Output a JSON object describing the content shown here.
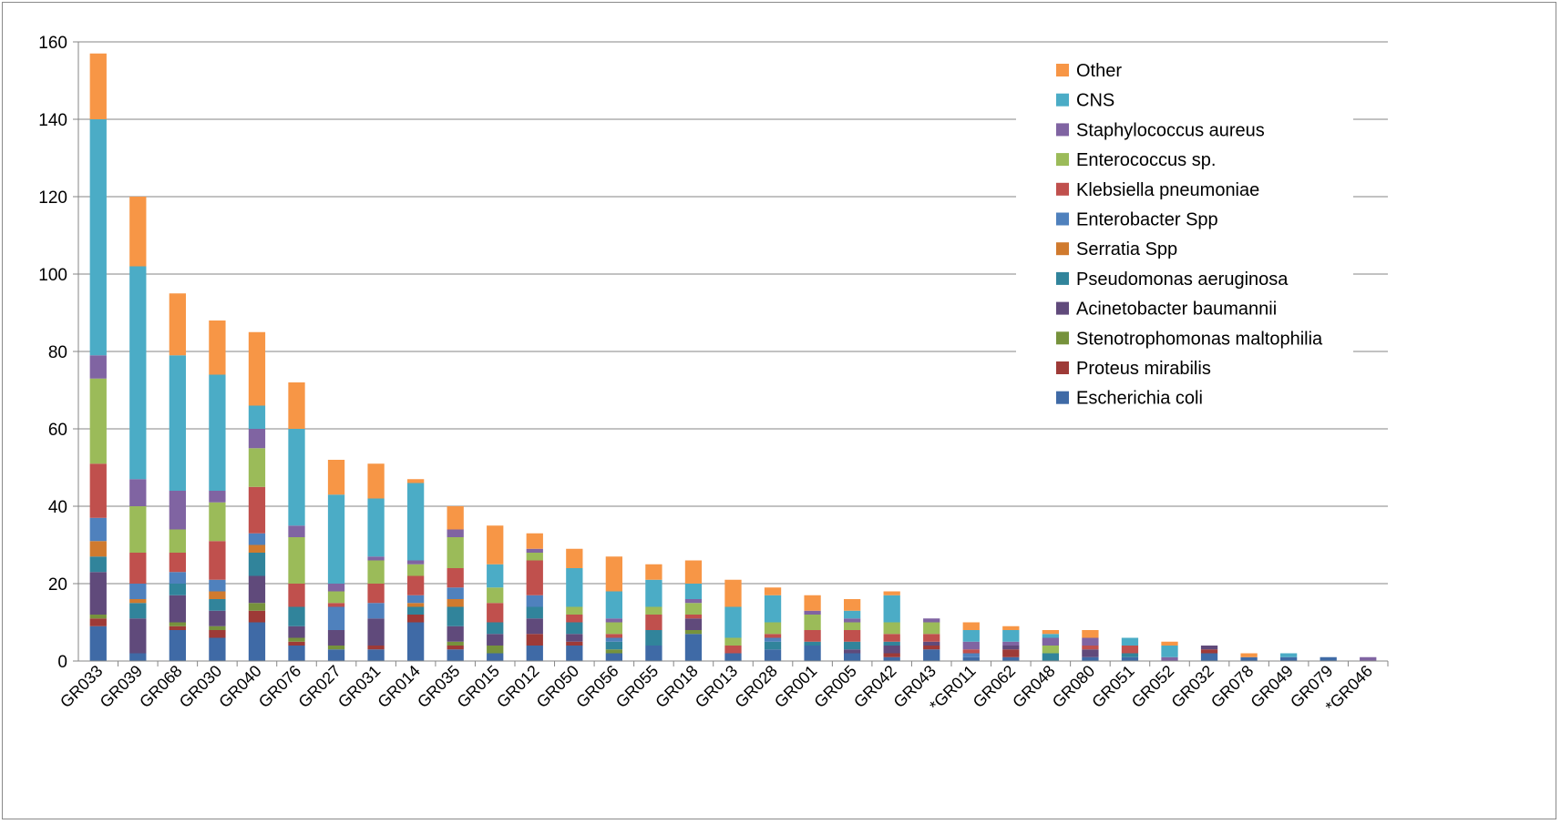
{
  "chart_data": {
    "type": "bar",
    "stacked": true,
    "title": "",
    "xlabel": "",
    "ylabel": "",
    "ylim": [
      0,
      160
    ],
    "yticks": [
      0,
      20,
      40,
      60,
      80,
      100,
      120,
      140,
      160
    ],
    "grid": true,
    "legend_position": "top-right",
    "categories": [
      "GR033",
      "GR039",
      "GR068",
      "GR030",
      "GR040",
      "GR076",
      "GR027",
      "GR031",
      "GR014",
      "GR035",
      "GR015",
      "GR012",
      "GR050",
      "GR056",
      "GR055",
      "GR018",
      "GR013",
      "GR028",
      "GR001",
      "GR005",
      "GR042",
      "GR043",
      "*GR011",
      "GR062",
      "GR048",
      "GR080",
      "GR051",
      "GR052",
      "GR032",
      "GR078",
      "GR049",
      "GR079",
      "*GR046"
    ],
    "series": [
      {
        "name": "Escherichia coli",
        "color": "#3f6aa6",
        "values": [
          9,
          2,
          8,
          6,
          10,
          4,
          3,
          3,
          10,
          3,
          2,
          4,
          4,
          2,
          4,
          7,
          2,
          3,
          4,
          2,
          1,
          3,
          1,
          1,
          0,
          1,
          1,
          0,
          2,
          1,
          1,
          1,
          0
        ]
      },
      {
        "name": "Proteus mirabilis",
        "color": "#9e3a37",
        "values": [
          2,
          0,
          1,
          2,
          3,
          1,
          0,
          1,
          2,
          1,
          0,
          3,
          1,
          0,
          0,
          0,
          0,
          0,
          0,
          0,
          1,
          1,
          0,
          2,
          0,
          0,
          0,
          0,
          1,
          0,
          0,
          0,
          0
        ]
      },
      {
        "name": "Stenotrophomonas maltophilia",
        "color": "#76923c",
        "values": [
          1,
          0,
          1,
          1,
          2,
          1,
          1,
          0,
          0,
          1,
          2,
          0,
          0,
          1,
          0,
          1,
          0,
          0,
          0,
          0,
          0,
          0,
          0,
          0,
          0,
          0,
          0,
          0,
          0,
          0,
          0,
          0,
          0
        ]
      },
      {
        "name": "Acinetobacter baumannii",
        "color": "#604a7b",
        "values": [
          11,
          9,
          7,
          4,
          7,
          3,
          4,
          7,
          0,
          4,
          3,
          4,
          2,
          0,
          0,
          3,
          0,
          0,
          0,
          1,
          2,
          1,
          0,
          1,
          0,
          2,
          0,
          0,
          1,
          0,
          0,
          0,
          0
        ]
      },
      {
        "name": "Pseudomonas aeruginosa",
        "color": "#31849b",
        "values": [
          4,
          4,
          3,
          3,
          6,
          5,
          0,
          0,
          2,
          5,
          3,
          3,
          3,
          2,
          4,
          0,
          0,
          2,
          1,
          2,
          1,
          0,
          0,
          0,
          2,
          0,
          1,
          0,
          0,
          0,
          0,
          0,
          0
        ]
      },
      {
        "name": "Serratia Spp",
        "color": "#d07a2e",
        "values": [
          4,
          1,
          0,
          2,
          2,
          0,
          0,
          0,
          1,
          2,
          0,
          0,
          0,
          0,
          0,
          0,
          0,
          0,
          0,
          0,
          0,
          0,
          0,
          0,
          0,
          0,
          0,
          0,
          0,
          0,
          0,
          0,
          0
        ]
      },
      {
        "name": "Enterobacter Spp",
        "color": "#4f81bd",
        "values": [
          6,
          4,
          3,
          3,
          3,
          0,
          6,
          4,
          2,
          3,
          0,
          3,
          0,
          1,
          0,
          0,
          0,
          1,
          0,
          0,
          0,
          0,
          1,
          0,
          0,
          0,
          0,
          0,
          0,
          0,
          0,
          0,
          0
        ]
      },
      {
        "name": "Klebsiella pneumoniae",
        "color": "#c0504d",
        "values": [
          14,
          8,
          5,
          10,
          12,
          6,
          1,
          5,
          5,
          5,
          5,
          9,
          2,
          1,
          4,
          1,
          2,
          1,
          3,
          3,
          2,
          2,
          1,
          0,
          0,
          1,
          2,
          0,
          0,
          0,
          0,
          0,
          0
        ]
      },
      {
        "name": "Enterococcus sp.",
        "color": "#9bbb59",
        "values": [
          22,
          12,
          6,
          10,
          10,
          12,
          3,
          6,
          3,
          8,
          4,
          2,
          2,
          3,
          2,
          3,
          2,
          3,
          4,
          2,
          3,
          3,
          0,
          0,
          2,
          0,
          0,
          0,
          0,
          0,
          0,
          0,
          0
        ]
      },
      {
        "name": "Staphylococcus aureus",
        "color": "#8064a2",
        "values": [
          6,
          7,
          10,
          3,
          5,
          3,
          2,
          1,
          1,
          2,
          0,
          1,
          0,
          1,
          0,
          1,
          0,
          0,
          1,
          1,
          0,
          1,
          2,
          1,
          2,
          2,
          0,
          1,
          0,
          0,
          0,
          0,
          1
        ]
      },
      {
        "name": "CNS",
        "color": "#4bacc6",
        "values": [
          61,
          55,
          35,
          30,
          6,
          25,
          23,
          15,
          20,
          0,
          6,
          0,
          10,
          7,
          7,
          4,
          8,
          7,
          0,
          2,
          7,
          0,
          3,
          3,
          1,
          0,
          2,
          3,
          0,
          0,
          1,
          0,
          0
        ]
      },
      {
        "name": "Other",
        "color": "#f79646",
        "values": [
          17,
          18,
          16,
          14,
          19,
          12,
          9,
          9,
          1,
          6,
          10,
          4,
          5,
          9,
          4,
          6,
          7,
          2,
          4,
          3,
          1,
          0,
          2,
          1,
          1,
          2,
          0,
          1,
          0,
          1,
          0,
          0,
          0
        ]
      }
    ]
  }
}
